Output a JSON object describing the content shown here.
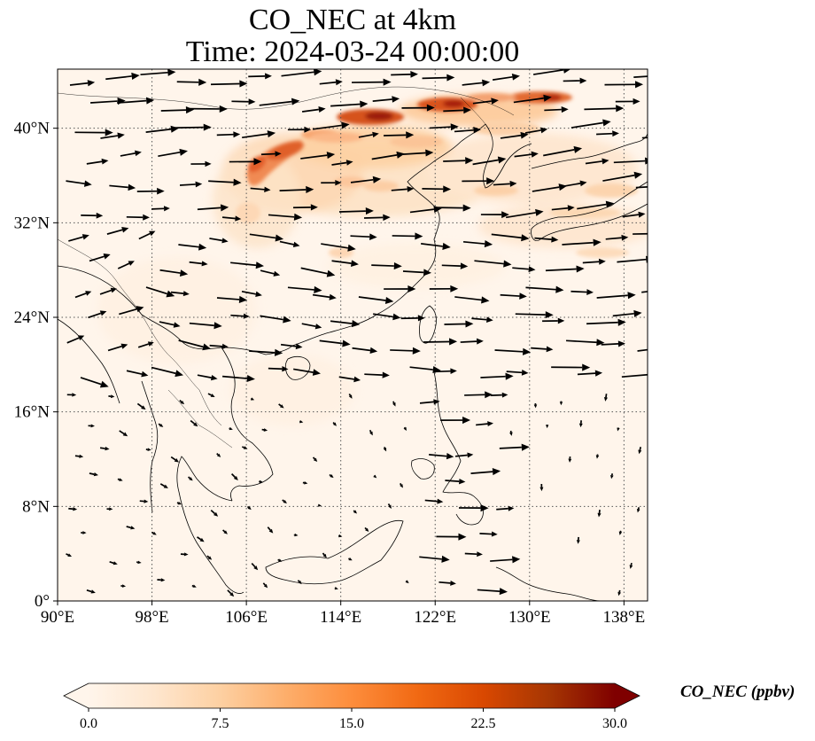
{
  "title": {
    "line1": "CO_NEC at 4km",
    "line2": "Time: 2024-03-24 00:00:00"
  },
  "map": {
    "projection": "PlateCarree",
    "lon_range": [
      90,
      140
    ],
    "lat_range": [
      0,
      45
    ],
    "lon_ticks": [
      {
        "value": 90,
        "label": "90°E"
      },
      {
        "value": 98,
        "label": "98°E"
      },
      {
        "value": 106,
        "label": "106°E"
      },
      {
        "value": 114,
        "label": "114°E"
      },
      {
        "value": 122,
        "label": "122°E"
      },
      {
        "value": 130,
        "label": "130°E"
      },
      {
        "value": 138,
        "label": "138°E"
      }
    ],
    "lat_ticks": [
      {
        "value": 0,
        "label": "0°"
      },
      {
        "value": 8,
        "label": "8°N"
      },
      {
        "value": 16,
        "label": "16°N"
      },
      {
        "value": 24,
        "label": "24°N"
      },
      {
        "value": 32,
        "label": "32°N"
      },
      {
        "value": 40,
        "label": "40°N"
      }
    ],
    "gridlines": "dotted",
    "background_color": "#fff5eb",
    "plume_color_max": "#7f0000"
  },
  "colorbar": {
    "label": "CO_NEC (ppbv)",
    "min": 0.0,
    "max": 30.0,
    "tick_labels": [
      "0.0",
      "7.5",
      "15.0",
      "22.5",
      "30.0"
    ],
    "colors": [
      "#fff5eb",
      "#fee6ce",
      "#fdd0a2",
      "#fdae6b",
      "#fd8d3c",
      "#f16913",
      "#d94801",
      "#a63603",
      "#7f0000"
    ],
    "extend": "both"
  }
}
